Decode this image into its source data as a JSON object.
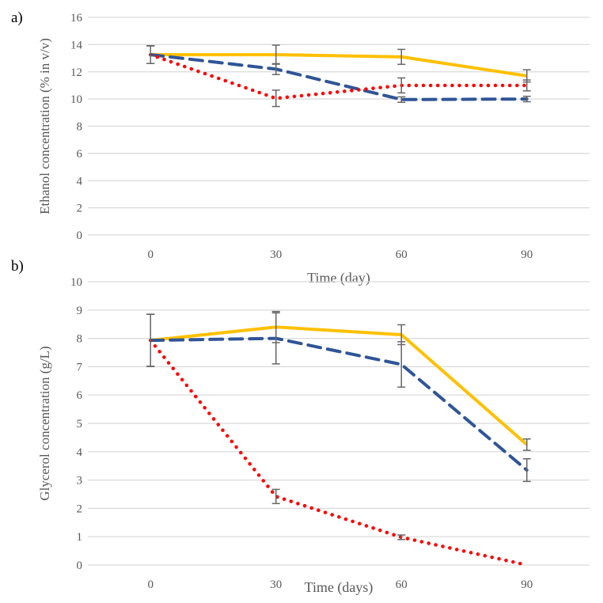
{
  "panels": [
    {
      "label": "a)"
    },
    {
      "label": "b)"
    }
  ],
  "chart_data": [
    {
      "type": "line",
      "title": "",
      "xlabel": "Time (day)",
      "ylabel": "Ethanol concentration (% in v/v)",
      "categories": [
        "0",
        "30",
        "60",
        "90"
      ],
      "ylim": [
        0,
        16
      ],
      "yticks": [
        0,
        2,
        4,
        6,
        8,
        10,
        12,
        14,
        16
      ],
      "grid": true,
      "series": [
        {
          "name": "series-yellow",
          "color": "#FFC000",
          "style": "solid",
          "values": [
            13.26,
            13.26,
            13.1,
            11.7
          ],
          "errors": [
            0.65,
            0.7,
            0.55,
            0.45
          ]
        },
        {
          "name": "series-blue",
          "color": "#2F5597",
          "style": "dashed",
          "values": [
            13.26,
            12.2,
            9.96,
            10.0
          ],
          "errors": [
            0.65,
            0.4,
            0.2,
            0.2
          ]
        },
        {
          "name": "series-red",
          "color": "#FF0000",
          "style": "dotted",
          "values": [
            13.26,
            10.05,
            11.0,
            11.0
          ],
          "errors": [
            0.65,
            0.6,
            0.55,
            0.4
          ]
        }
      ]
    },
    {
      "type": "line",
      "title": "",
      "xlabel": "Time (days)",
      "ylabel": "Glycerol concentration (g/L)",
      "categories": [
        "0",
        "30",
        "60",
        "90"
      ],
      "ylim": [
        0,
        10
      ],
      "yticks": [
        0,
        1,
        2,
        3,
        4,
        5,
        6,
        7,
        8,
        9,
        10
      ],
      "grid": true,
      "series": [
        {
          "name": "series-yellow",
          "color": "#FFC000",
          "style": "solid",
          "values": [
            7.93,
            8.4,
            8.13,
            4.25
          ],
          "errors": [
            0.92,
            0.55,
            0.35,
            0.2
          ]
        },
        {
          "name": "series-blue",
          "color": "#2F5597",
          "style": "dashed",
          "values": [
            7.93,
            8.0,
            7.08,
            3.35
          ],
          "errors": [
            0.92,
            0.9,
            0.8,
            0.4
          ]
        },
        {
          "name": "series-red",
          "color": "#FF0000",
          "style": "dotted",
          "values": [
            7.93,
            2.42,
            0.98,
            0.0
          ],
          "errors": [
            0.92,
            0.25,
            0.08,
            0.0
          ]
        }
      ]
    }
  ]
}
